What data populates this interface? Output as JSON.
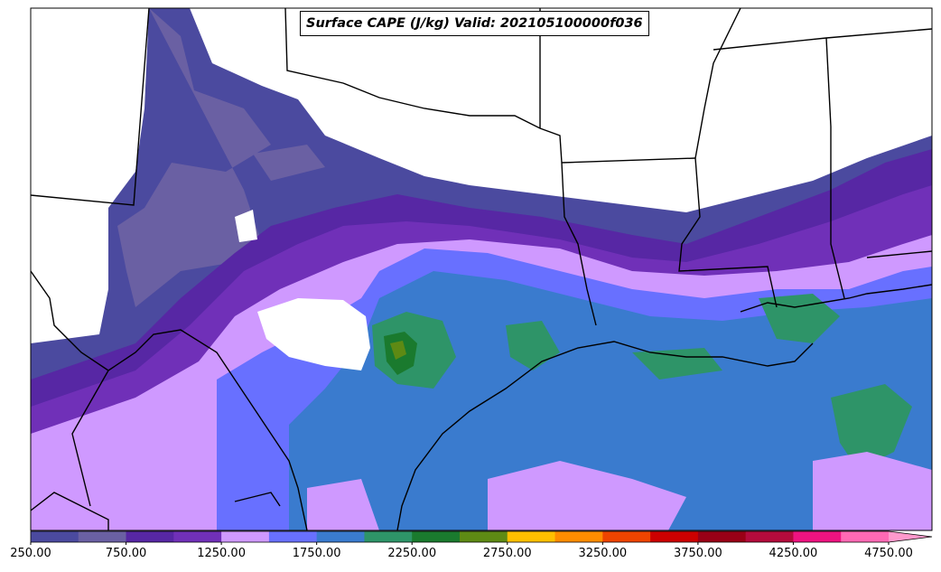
{
  "title": "Surface CAPE (J/kg) Valid: 202105100000f036",
  "colorbar": {
    "colors": [
      "#4b4a9f",
      "#6a60a3",
      "#5727a4",
      "#7030b8",
      "#cf99ff",
      "#6870ff",
      "#3a7bce",
      "#2e9468",
      "#1a7a2e",
      "#5e8a14",
      "#ffbf00",
      "#ff8c00",
      "#ee4400",
      "#cc0000",
      "#990016",
      "#b30b3c",
      "#ee1380",
      "#ff69b4",
      "#ff99cc"
    ],
    "tick_labels": [
      "250.00",
      "750.00",
      "1250.00",
      "1750.00",
      "2250.00",
      "2750.00",
      "3250.00",
      "3750.00",
      "4250.00",
      "4750.00"
    ],
    "extend": "max"
  },
  "legend_colors": {
    "white_bg": "#ffffff",
    "boundary": "#000000"
  }
}
